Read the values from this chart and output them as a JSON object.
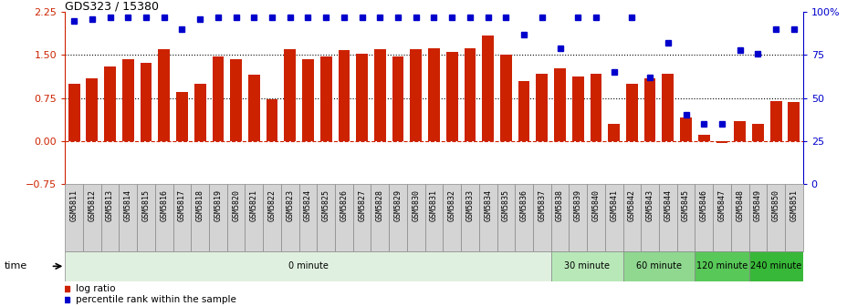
{
  "title": "GDS323 / 15380",
  "samples": [
    "GSM5811",
    "GSM5812",
    "GSM5813",
    "GSM5814",
    "GSM5815",
    "GSM5816",
    "GSM5817",
    "GSM5818",
    "GSM5819",
    "GSM5820",
    "GSM5821",
    "GSM5822",
    "GSM5823",
    "GSM5824",
    "GSM5825",
    "GSM5826",
    "GSM5827",
    "GSM5828",
    "GSM5829",
    "GSM5830",
    "GSM5831",
    "GSM5832",
    "GSM5833",
    "GSM5834",
    "GSM5835",
    "GSM5836",
    "GSM5837",
    "GSM5838",
    "GSM5839",
    "GSM5840",
    "GSM5841",
    "GSM5842",
    "GSM5843",
    "GSM5844",
    "GSM5845",
    "GSM5846",
    "GSM5847",
    "GSM5848",
    "GSM5849",
    "GSM5850",
    "GSM5851"
  ],
  "log_ratio": [
    1.0,
    1.1,
    1.3,
    1.42,
    1.37,
    1.6,
    0.85,
    1.0,
    1.48,
    1.42,
    1.15,
    0.72,
    1.6,
    1.42,
    1.48,
    1.58,
    1.52,
    1.6,
    1.47,
    1.6,
    1.62,
    1.55,
    1.62,
    1.85,
    1.5,
    1.05,
    1.17,
    1.27,
    1.12,
    1.17,
    0.3,
    1.0,
    1.1,
    1.17,
    0.4,
    0.1,
    -0.04,
    0.35,
    0.3,
    0.7,
    0.68
  ],
  "percentile": [
    95,
    96,
    97,
    97,
    97,
    97,
    90,
    96,
    97,
    97,
    97,
    97,
    97,
    97,
    97,
    97,
    97,
    97,
    97,
    97,
    97,
    97,
    97,
    97,
    97,
    87,
    97,
    79,
    97,
    97,
    65,
    97,
    62,
    82,
    40,
    35,
    35,
    78,
    76,
    90,
    90
  ],
  "bar_color": "#cc2200",
  "dot_color": "#0000cc",
  "hline_color": "#cc2200",
  "yticks_left": [
    -0.75,
    0,
    0.75,
    1.5,
    2.25
  ],
  "yticks_right": [
    0,
    25,
    50,
    75,
    100
  ],
  "ylim_left": [
    -0.75,
    2.25
  ],
  "ylim_right": [
    0,
    100
  ],
  "groups": [
    {
      "label": "0 minute",
      "start": 0,
      "end": 27,
      "color": "#e0f0e0"
    },
    {
      "label": "30 minute",
      "start": 27,
      "end": 31,
      "color": "#b8e8b8"
    },
    {
      "label": "60 minute",
      "start": 31,
      "end": 35,
      "color": "#90d890"
    },
    {
      "label": "120 minute",
      "start": 35,
      "end": 38,
      "color": "#58c858"
    },
    {
      "label": "240 minute",
      "start": 38,
      "end": 41,
      "color": "#38b838"
    }
  ],
  "legend_bar_label": "log ratio",
  "legend_dot_label": "percentile rank within the sample",
  "time_label": "time"
}
